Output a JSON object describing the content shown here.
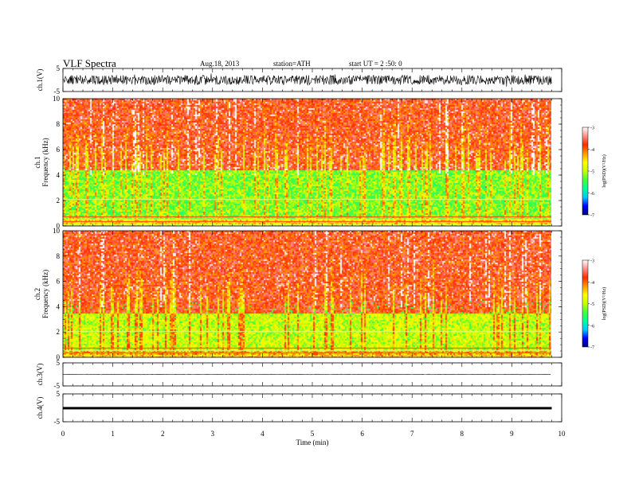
{
  "header": {
    "title": "VLF Spectra",
    "date": "Aug.18, 2013",
    "station": "station=ATH",
    "start": "start UT = 2 :50: 0"
  },
  "chart_data": [
    {
      "type": "line",
      "panel": "ch1-waveform",
      "ylabel": "ch.1(V)",
      "ylim": [
        -5,
        5
      ],
      "yticks": [
        "5",
        "-5"
      ],
      "xlim": [
        0,
        10
      ],
      "data_extent_min": 9.8,
      "description_series": "dense noisy waveform, amplitude about +/-2 V"
    },
    {
      "type": "heatmap",
      "panel": "ch1-spectrogram",
      "ylabel": "ch.1\nFrequency (kHz)",
      "ylim": [
        0,
        10
      ],
      "yticks": [
        "0",
        "2",
        "4",
        "6",
        "8",
        "10"
      ],
      "xlim": [
        0,
        10
      ],
      "data_extent_min": 9.8,
      "colorbar": {
        "label": "log(PSD)(V²/Hz)",
        "range": [
          -7,
          -3
        ],
        "ticks": [
          "-3",
          "-4",
          "-5",
          "-6",
          "-7"
        ]
      },
      "dominant_levels": [
        {
          "freq_kHz": [
            4.5,
            10
          ],
          "log_psd": -3.8
        },
        {
          "freq_kHz": [
            0.6,
            4.5
          ],
          "log_psd": -5.2
        },
        {
          "freq_kHz": [
            0,
            0.6
          ],
          "log_psd": -4.5
        }
      ]
    },
    {
      "type": "heatmap",
      "panel": "ch2-spectrogram",
      "ylabel": "ch.2\nFrequency (kHz)",
      "ylim": [
        0,
        10
      ],
      "yticks": [
        "0",
        "2",
        "4",
        "6",
        "8",
        "10"
      ],
      "xlim": [
        0,
        10
      ],
      "data_extent_min": 9.8,
      "colorbar": {
        "label": "log(PSD)(V²/Hz)",
        "range": [
          -7,
          -3
        ],
        "ticks": [
          "-3",
          "-4",
          "-5",
          "-6",
          "-7"
        ]
      },
      "dominant_levels": [
        {
          "freq_kHz": [
            3.5,
            10
          ],
          "log_psd": -3.8
        },
        {
          "freq_kHz": [
            0.6,
            3.5
          ],
          "log_psd": -4.9
        },
        {
          "freq_kHz": [
            0,
            0.6
          ],
          "log_psd": -4.3
        }
      ]
    },
    {
      "type": "line",
      "panel": "ch3-waveform",
      "ylabel": "ch.3(V)",
      "ylim": [
        -5,
        5
      ],
      "yticks": [
        "5",
        "-5"
      ],
      "xlim": [
        0,
        10
      ],
      "data_extent_min": 9.8,
      "level_V": 0,
      "noise_V": 0.1
    },
    {
      "type": "line",
      "panel": "ch4-waveform",
      "ylabel": "ch.4(V)",
      "ylim": [
        -5,
        5
      ],
      "yticks": [
        "5",
        "-5"
      ],
      "xlim": [
        0,
        10
      ],
      "xticks": [
        "0",
        "1",
        "2",
        "3",
        "4",
        "5",
        "6",
        "7",
        "8",
        "9",
        "10"
      ],
      "xlabel": "Time (min)",
      "data_extent_min": 9.8,
      "level_V": 0,
      "noise_V": 0.3
    }
  ],
  "colors": {
    "colormap": [
      "#000080",
      "#0000ff",
      "#00c8ff",
      "#00ff9a",
      "#40ff40",
      "#c8ff00",
      "#ffff00",
      "#ff9800",
      "#ff2a00",
      "#ff8c8c",
      "#ffffff"
    ],
    "axes": "#000000"
  }
}
